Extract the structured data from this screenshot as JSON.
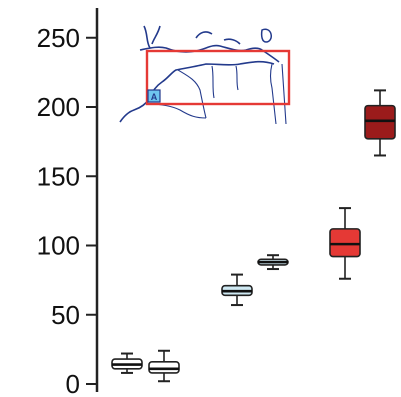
{
  "chart_data": {
    "type": "box",
    "title": "",
    "xlabel": "",
    "ylabel": "",
    "ylim": [
      0,
      260
    ],
    "yticks": [
      0,
      50,
      100,
      150,
      200,
      250
    ],
    "grid": false,
    "legend": "none",
    "boxes": [
      {
        "min": 8,
        "q1": 11,
        "median": 14,
        "q3": 18,
        "max": 22,
        "fill": "#ffffff"
      },
      {
        "min": 2,
        "q1": 8,
        "median": 11,
        "q3": 16,
        "max": 24,
        "fill": "#ffffff"
      },
      {
        "min": 57,
        "q1": 64,
        "median": 67,
        "q3": 71,
        "max": 79,
        "fill": "#cfe9f3"
      },
      {
        "min": 83,
        "q1": 86,
        "median": 88,
        "q3": 90,
        "max": 93,
        "fill": "#cfe9f3"
      },
      {
        "min": 76,
        "q1": 92,
        "median": 101,
        "q3": 112,
        "max": 127,
        "fill": "#e53935"
      },
      {
        "min": 165,
        "q1": 177,
        "median": 190,
        "q3": 201,
        "max": 212,
        "fill": "#9b1b1b"
      }
    ],
    "inset_map": {
      "marker_label": "A",
      "frame_color": "#e53935",
      "coast_color": "#233a8c",
      "marker_fill": "#6ec6f0"
    }
  }
}
